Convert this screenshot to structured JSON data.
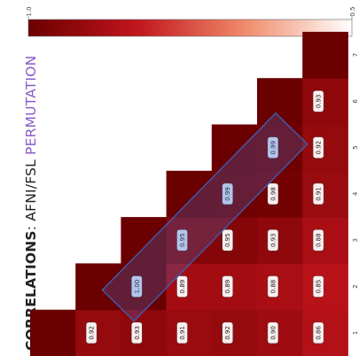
{
  "title": {
    "part1": "CORRELATIONS",
    "part2": ": AFNI/FSL ",
    "part3": "PERMUTATION"
  },
  "chart_data": {
    "type": "heatmap",
    "subtype": "lower-triangle correlation matrix",
    "row_labels": [
      "1",
      "2",
      "3",
      "4",
      "5",
      "6",
      "7"
    ],
    "col_labels": [
      "1",
      "2",
      "3",
      "4",
      "5",
      "6",
      "7"
    ],
    "values": [
      [
        null,
        null,
        null,
        null,
        null,
        null,
        null
      ],
      [
        0.92,
        null,
        null,
        null,
        null,
        null,
        null
      ],
      [
        0.93,
        1.0,
        null,
        null,
        null,
        null,
        null
      ],
      [
        0.91,
        0.89,
        0.95,
        null,
        null,
        null,
        null
      ],
      [
        0.92,
        0.89,
        0.95,
        0.99,
        null,
        null,
        null
      ],
      [
        0.9,
        0.88,
        0.93,
        0.98,
        0.99,
        null,
        null
      ],
      [
        0.86,
        0.85,
        0.88,
        0.91,
        0.92,
        0.93,
        null
      ]
    ],
    "value_labels_shown": true,
    "diagonal_shown": true,
    "highlight": {
      "description": "blue rectangle around the sub-diagonal cells",
      "cells": [
        [
          2,
          1
        ],
        [
          3,
          2
        ],
        [
          4,
          3
        ],
        [
          5,
          4
        ]
      ],
      "color": "#4a6bc4"
    },
    "colorbar": {
      "min": 0.5,
      "max": 1.0,
      "tick_labels": [
        "1.0",
        "0.5"
      ],
      "colors": [
        "#6b0000",
        "#c0141c",
        "#f08a6a",
        "#ffffff"
      ]
    }
  }
}
